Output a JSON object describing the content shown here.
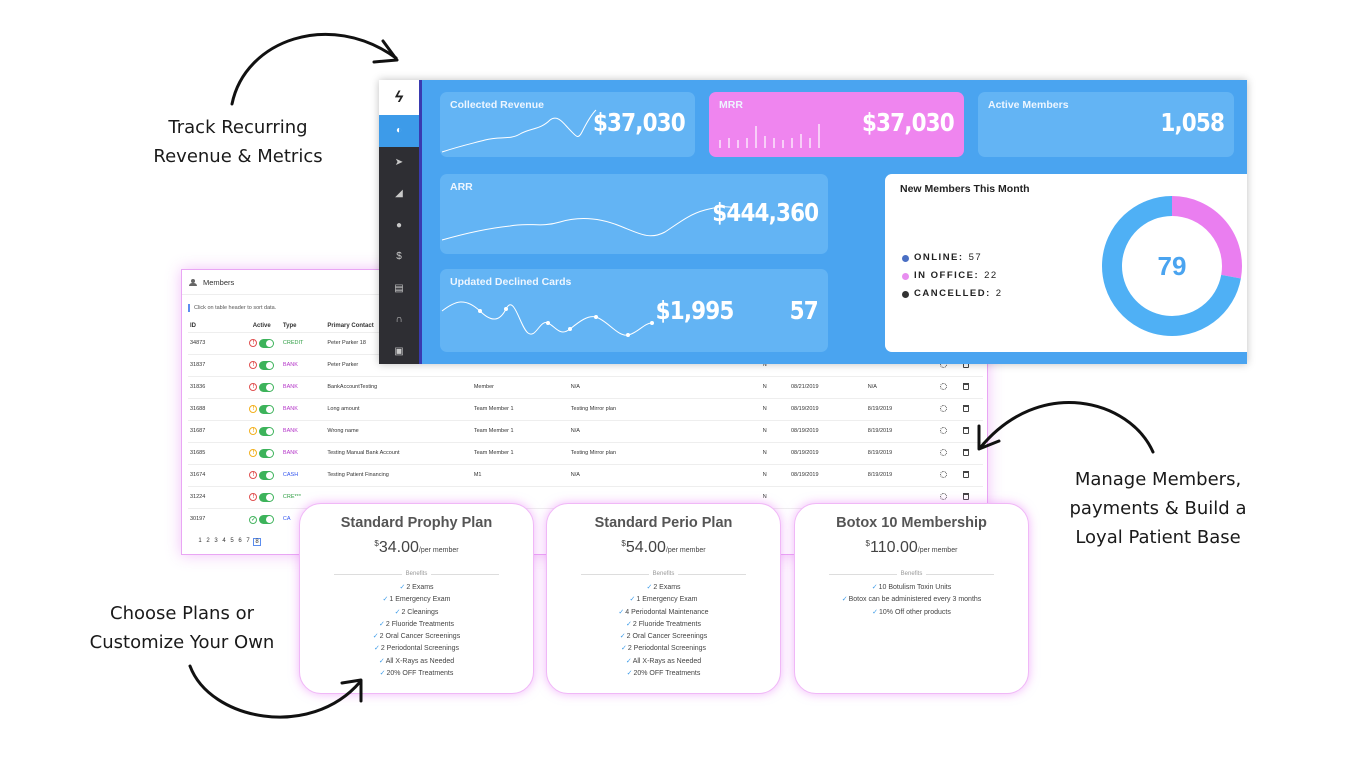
{
  "callouts": {
    "track": [
      "Track Recurring",
      "Revenue & Metrics"
    ],
    "manage": [
      "Manage Members,",
      "payments & Build a",
      "Loyal Patient Base"
    ],
    "plans": [
      "Choose Plans or",
      "Customize Your Own"
    ]
  },
  "members": {
    "title": "Members",
    "hint": "Click on table header to sort data.",
    "columns": [
      "ID",
      "Active",
      "Type",
      "Primary Contact"
    ],
    "rows": [
      {
        "id": "34873",
        "status": "red",
        "type": "CREDIT",
        "contact": "Peter Parker 18",
        "extra": "",
        "plan": "",
        "n": "",
        "d1": "",
        "d2": ""
      },
      {
        "id": "31837",
        "status": "red",
        "type": "BANK",
        "contact": "Peter Parker",
        "extra": "",
        "plan": "",
        "n": "N",
        "d1": "",
        "d2": ""
      },
      {
        "id": "31836",
        "status": "red",
        "type": "BANK",
        "contact": "BankAccountTesting",
        "extra": "Member",
        "plan": "N/A",
        "n": "N",
        "d1": "08/21/2019",
        "d2": "N/A"
      },
      {
        "id": "31688",
        "status": "yellow",
        "type": "BANK",
        "contact": "Long amount",
        "extra": "Team Member 1",
        "plan": "Testing Mirror plan",
        "n": "N",
        "d1": "08/19/2019",
        "d2": "8/19/2019"
      },
      {
        "id": "31687",
        "status": "yellow",
        "type": "BANK",
        "contact": "Wrong name",
        "extra": "Team Member 1",
        "plan": "N/A",
        "n": "N",
        "d1": "08/19/2019",
        "d2": "8/19/2019"
      },
      {
        "id": "31685",
        "status": "yellow",
        "type": "BANK",
        "contact": "Testing Manual Bank Account",
        "extra": "Team Member 1",
        "plan": "Testing Mirror plan",
        "n": "N",
        "d1": "08/19/2019",
        "d2": "8/19/2019"
      },
      {
        "id": "31674",
        "status": "red",
        "type": "CASH",
        "contact": "Testing Patient Financing",
        "extra": "M1",
        "plan": "N/A",
        "n": "N",
        "d1": "08/19/2019",
        "d2": "8/19/2019"
      },
      {
        "id": "31224",
        "status": "red",
        "type": "CRE***",
        "contact": "",
        "extra": "",
        "plan": "",
        "n": "N",
        "d1": "",
        "d2": ""
      },
      {
        "id": "30197",
        "status": "ok",
        "type": "CA",
        "contact": "",
        "extra": "",
        "plan": "",
        "n": "",
        "d1": "",
        "d2": ""
      }
    ],
    "pages": [
      "1",
      "2",
      "3",
      "4",
      "5",
      "6",
      "7",
      "8"
    ]
  },
  "dashboard": {
    "logo": "ϟ",
    "collected": {
      "title": "Collected Revenue",
      "value": "$37,030"
    },
    "mrr": {
      "title": "MRR",
      "value": "$37,030"
    },
    "active": {
      "title": "Active Members",
      "value": "1,058"
    },
    "arr": {
      "title": "ARR",
      "value": "$444,360"
    },
    "declined": {
      "title": "Updated Declined Cards",
      "value": "$1,995",
      "count": "57"
    },
    "new_members": {
      "title": "New Members This Month",
      "total": "79",
      "legend": [
        {
          "label": "ONLINE:",
          "value": "57",
          "color": "#4a6fc4"
        },
        {
          "label": "IN OFFICE:",
          "value": "22",
          "color": "#e88ef0"
        },
        {
          "label": "CANCELLED:",
          "value": "2",
          "color": "#333333"
        }
      ]
    },
    "colors": {
      "accent": "#4aa4f0",
      "card": "#63b4f4",
      "mrr": "#ef85ef",
      "donut_online": "#4fb0f5",
      "donut_office": "#ea7ef0"
    }
  },
  "plans": [
    {
      "name": "Standard Prophy Plan",
      "currency": "$",
      "amount": "34.00",
      "per": "/per member",
      "benefits_label": "Benefits",
      "benefits": [
        "2 Exams",
        "1 Emergency Exam",
        "2 Cleanings",
        "2 Fluoride Treatments",
        "2 Oral Cancer Screenings",
        "2 Periodontal Screenings",
        "All X-Rays as Needed",
        "20% OFF Treatments"
      ]
    },
    {
      "name": "Standard Perio Plan",
      "currency": "$",
      "amount": "54.00",
      "per": "/per member",
      "benefits_label": "Benefits",
      "benefits": [
        "2 Exams",
        "1 Emergency Exam",
        "4 Periodontal Maintenance",
        "2 Fluoride Treatments",
        "2 Oral Cancer Screenings",
        "2 Periodontal Screenings",
        "All X-Rays as Needed",
        "20% OFF Treatments"
      ]
    },
    {
      "name": "Botox 10 Membership",
      "currency": "$",
      "amount": "110.00",
      "per": "/per member",
      "benefits_label": "Benefits",
      "benefits": [
        "10 Botulism Toxin Units",
        "Botox can be administered every 3 months",
        "10% Off other products"
      ]
    }
  ]
}
